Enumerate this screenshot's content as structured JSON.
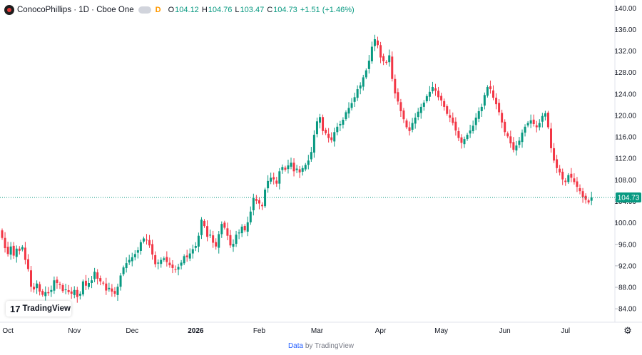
{
  "header": {
    "title": "ConocoPhillips · 1D · Cboe One",
    "flag": "D",
    "o_label": "O",
    "o_value": "104.12",
    "h_label": "H",
    "h_value": "104.76",
    "l_label": "L",
    "l_value": "103.47",
    "c_label": "C",
    "c_value": "104.73",
    "change": "+1.51 (+1.46%)"
  },
  "logo": {
    "mark": "17",
    "text": "TradingView"
  },
  "footer": {
    "prefix": "Data",
    "suffix": "by TradingView"
  },
  "icons": {
    "settings": "gear-icon",
    "logo": "tradingview-logo-icon",
    "symbol": "conocophillips-logo-icon"
  },
  "colors": {
    "up": "#089981",
    "down": "#f23645",
    "price_label": "#089981"
  },
  "chart_data": {
    "type": "candlestick",
    "ylim": [
      81.5,
      141.5
    ],
    "y_ticks": [
      84,
      88,
      92,
      96,
      100,
      104,
      108,
      112,
      116,
      120,
      124,
      128,
      132,
      136,
      140
    ],
    "y_tick_labels": [
      "84.00",
      "88.00",
      "92.00",
      "96.00",
      "100.00",
      "104.00",
      "108.00",
      "112.00",
      "116.00",
      "120.00",
      "124.00",
      "128.00",
      "132.00",
      "136.00",
      "140.00"
    ],
    "x_labels": [
      {
        "label": "Oct",
        "index": 2
      },
      {
        "label": "Nov",
        "index": 25
      },
      {
        "label": "Dec",
        "index": 45
      },
      {
        "label": "2026",
        "index": 67
      },
      {
        "label": "Feb",
        "index": 89
      },
      {
        "label": "Mar",
        "index": 109
      },
      {
        "label": "Apr",
        "index": 131
      },
      {
        "label": "May",
        "index": 152
      },
      {
        "label": "Jun",
        "index": 174
      },
      {
        "label": "Jul",
        "index": 195
      }
    ],
    "last_price": 104.73,
    "last_price_label": "104.73",
    "closes": [
      97.2,
      95.3,
      94.2,
      95.6,
      93.9,
      95.2,
      94.8,
      95.5,
      93.1,
      91.4,
      88.1,
      87.6,
      88.7,
      87.2,
      86.6,
      87.1,
      86.9,
      87.5,
      89.3,
      88.8,
      88.4,
      87.3,
      87.6,
      87.1,
      86.8,
      87.5,
      86.2,
      86.8,
      89.1,
      88.3,
      88.8,
      89.3,
      90.9,
      89.6,
      89.1,
      88.7,
      87.4,
      87.9,
      87.2,
      86.8,
      88.1,
      90.2,
      91.7,
      92.5,
      93.1,
      93.6,
      94.2,
      94.9,
      96.4,
      97.1,
      96.8,
      95.8,
      94.1,
      92.3,
      92.6,
      93.1,
      93.4,
      92.7,
      92.1,
      91.6,
      91.3,
      91.8,
      92.6,
      93.8,
      93.6,
      94.3,
      95.1,
      95.7,
      97.6,
      100.6,
      99.4,
      97.4,
      97.8,
      96.3,
      95.6,
      97.9,
      99.8,
      99.1,
      97.6,
      95.8,
      96.1,
      97.8,
      98.2,
      99.3,
      98.6,
      100.1,
      102.1,
      104.6,
      104.1,
      103.6,
      103.1,
      106.2,
      107.8,
      108.4,
      108.1,
      107.3,
      109.6,
      110.4,
      109.9,
      110.7,
      111.2,
      109.6,
      110.1,
      109.4,
      110.2,
      110.8,
      111.6,
      113.2,
      116.4,
      118.9,
      119.7,
      117.1,
      116.7,
      115.8,
      115.4,
      116.9,
      117.9,
      118.4,
      119.2,
      120.6,
      121.4,
      122.3,
      123.4,
      124.9,
      125.6,
      127.1,
      128.4,
      130.2,
      132.8,
      134.2,
      133.1,
      130.8,
      130.1,
      129.8,
      131.2,
      126.8,
      124.1,
      122.6,
      120.8,
      119.3,
      117.8,
      117.1,
      118.6,
      119.6,
      120.7,
      121.6,
      122.4,
      123.6,
      124.4,
      125.3,
      124.6,
      123.4,
      122.8,
      121.6,
      120.3,
      119.6,
      118.6,
      117.2,
      115.8,
      114.9,
      115.6,
      116.4,
      117.2,
      118.1,
      119.6,
      120.8,
      121.6,
      123.8,
      125.3,
      124.9,
      123.3,
      122.1,
      120.6,
      118.7,
      116.9,
      116.1,
      114.8,
      113.6,
      114.4,
      115.3,
      116.8,
      117.9,
      118.6,
      119.1,
      118.4,
      117.8,
      118.6,
      119.9,
      120.4,
      117.8,
      113.9,
      111.6,
      110.2,
      109.4,
      108.1,
      107.6,
      108.9,
      108.4,
      107.6,
      106.7,
      105.9,
      104.8,
      104.3,
      103.8,
      104.73
    ]
  }
}
